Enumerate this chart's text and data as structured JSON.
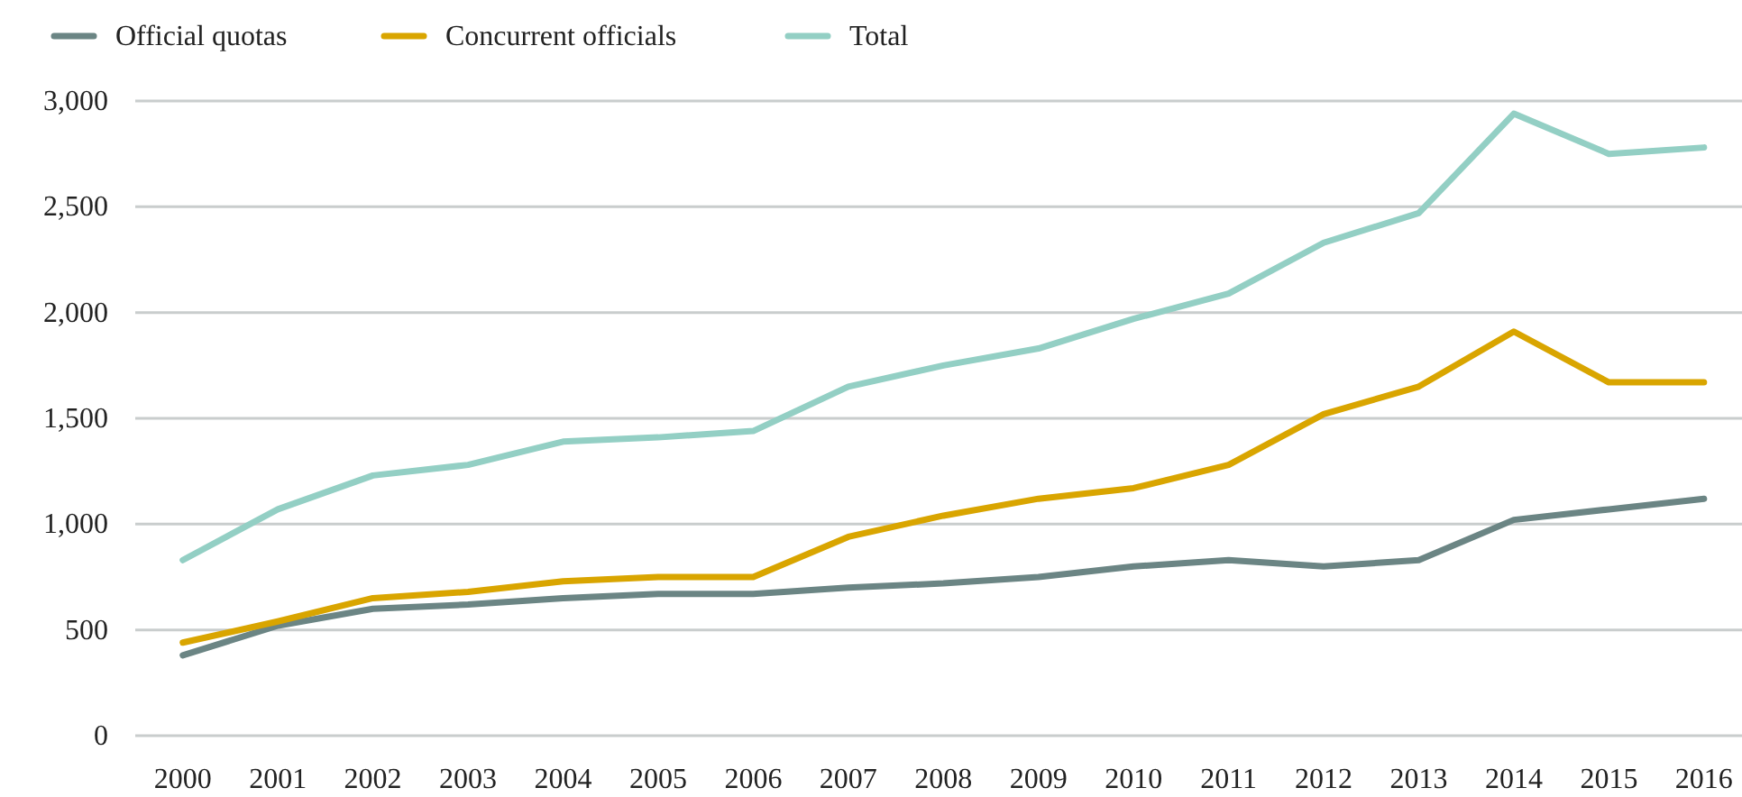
{
  "chart_data": {
    "type": "line",
    "x": [
      2000,
      2001,
      2002,
      2003,
      2004,
      2005,
      2006,
      2007,
      2008,
      2009,
      2010,
      2011,
      2012,
      2013,
      2014,
      2015,
      2016
    ],
    "xlim": [
      1999.5,
      2016.4
    ],
    "xticks": [
      2000,
      2001,
      2002,
      2003,
      2004,
      2005,
      2006,
      2007,
      2008,
      2009,
      2010,
      2011,
      2012,
      2013,
      2014,
      2015,
      2016
    ],
    "ylim": [
      0,
      3000
    ],
    "yticks": [
      {
        "value": 0,
        "label": "0"
      },
      {
        "value": 500,
        "label": "500"
      },
      {
        "value": 1000,
        "label": "1,000"
      },
      {
        "value": 1500,
        "label": "1,500"
      },
      {
        "value": 2000,
        "label": "2,000"
      },
      {
        "value": 2500,
        "label": "2,500"
      },
      {
        "value": 3000,
        "label": "3,000"
      }
    ],
    "grid": "y",
    "legend": "top left",
    "marker": "none",
    "line_style": "solid",
    "series": [
      {
        "name": "Official quotas",
        "color": "#6b8584",
        "values": [
          380,
          520,
          600,
          620,
          650,
          670,
          670,
          700,
          720,
          750,
          800,
          830,
          800,
          830,
          1020,
          1070,
          1120
        ]
      },
      {
        "name": "Concurrent officials",
        "color": "#d9a500",
        "values": [
          440,
          540,
          650,
          680,
          730,
          750,
          750,
          940,
          1040,
          1120,
          1170,
          1280,
          1520,
          1650,
          1910,
          1670,
          1670
        ]
      },
      {
        "name": "Total",
        "color": "#93cfc4",
        "values": [
          830,
          1070,
          1230,
          1280,
          1390,
          1410,
          1440,
          1650,
          1750,
          1830,
          1970,
          2090,
          2330,
          2470,
          2940,
          2750,
          2780
        ]
      }
    ]
  }
}
